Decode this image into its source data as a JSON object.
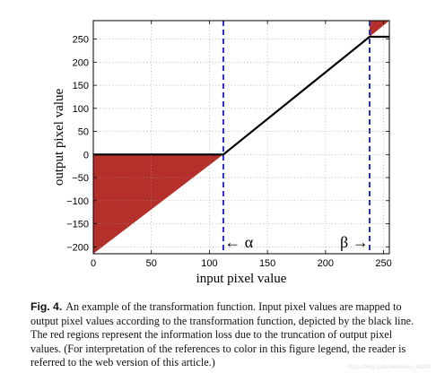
{
  "chart_data": {
    "type": "line",
    "title": "",
    "xlabel": "input pixel value",
    "ylabel": "output pixel value",
    "xlim": [
      0,
      255
    ],
    "ylim": [
      -215,
      290
    ],
    "xticks": [
      0,
      50,
      100,
      150,
      200,
      250
    ],
    "yticks": [
      -200,
      -150,
      -100,
      -50,
      0,
      50,
      100,
      150,
      200,
      250
    ],
    "grid": true,
    "series": [
      {
        "name": "",
        "color": "#000000",
        "x": [
          0,
          112,
          238,
          255
        ],
        "y": [
          0,
          0,
          255,
          255
        ]
      }
    ],
    "loss_regions": [
      {
        "color": "#b5302a",
        "x": [
          0,
          112
        ],
        "y_upper": [
          0,
          0
        ],
        "y_lower": [
          -215,
          0
        ]
      },
      {
        "color": "#b5302a",
        "x": [
          238,
          255
        ],
        "y_upper": [
          290,
          290
        ],
        "y_lower": [
          255,
          290
        ]
      }
    ],
    "vertical_lines": [
      {
        "x": 112,
        "color": "#1f2fd1",
        "style": "dashed"
      },
      {
        "x": 238,
        "color": "#1f2fd1",
        "style": "dashed"
      }
    ],
    "annotations": [
      {
        "text": "← α",
        "x": 113,
        "y": -205
      },
      {
        "text": "β →",
        "x": 237,
        "y": -205
      }
    ]
  },
  "caption": {
    "label": "Fig. 4.",
    "text": "An example of the transformation function. Input pixel values are mapped to output pixel values according to the transformation function, depicted by the black line. The red regions represent the information loss due to the truncation of output pixel values. (For interpretation of the references to color in this figure legend, the reader is referred to the web version of this article.)"
  },
  "watermark": "https://blog.csdn.net/weixin_43224"
}
